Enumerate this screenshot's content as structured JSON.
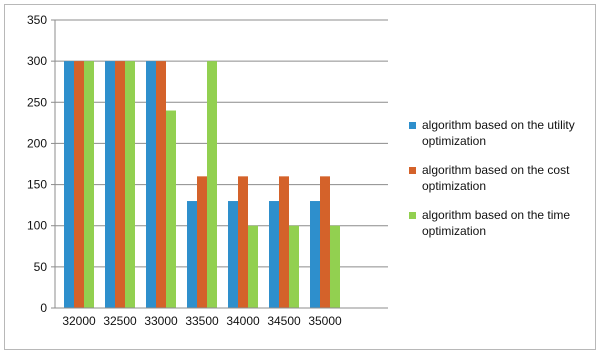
{
  "chart_data": {
    "type": "bar",
    "categories": [
      "32000",
      "32500",
      "33000",
      "33500",
      "34000",
      "34500",
      "35000"
    ],
    "series": [
      {
        "name": "algorithm based on the utility optimization",
        "color": "#2E8FCC",
        "values": [
          300,
          300,
          300,
          130,
          130,
          130,
          130
        ]
      },
      {
        "name": "algorithm based on the cost optimization",
        "color": "#D4622A",
        "values": [
          300,
          300,
          300,
          160,
          160,
          160,
          160
        ]
      },
      {
        "name": "algorithm based on the time optimization",
        "color": "#92D050",
        "values": [
          300,
          300,
          240,
          300,
          100,
          100,
          100
        ]
      }
    ],
    "title": "",
    "xlabel": "",
    "ylabel": "",
    "ylim": [
      0,
      350
    ],
    "yticks": [
      0,
      50,
      100,
      150,
      200,
      250,
      300,
      350
    ],
    "grid": true,
    "legend_position": "right"
  }
}
